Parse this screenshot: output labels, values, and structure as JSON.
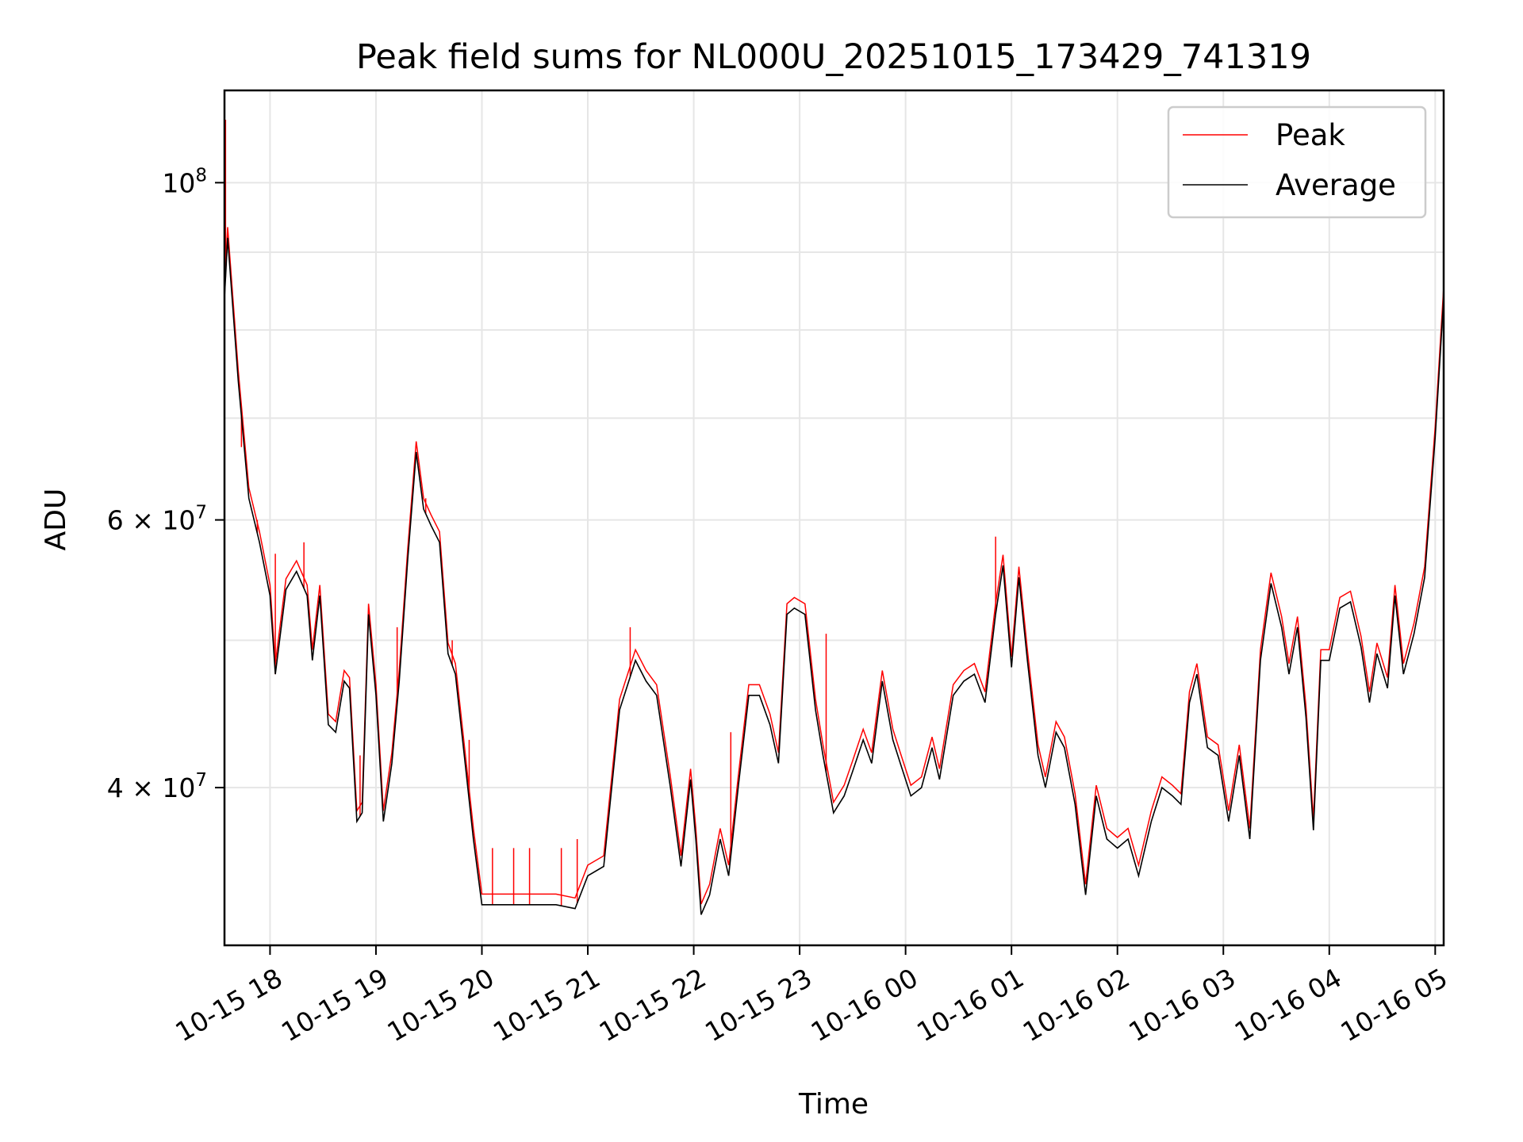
{
  "chart_data": {
    "type": "line",
    "title": "Peak field sums for NL000U_20251015_173429_741319",
    "xlabel": "Time",
    "ylabel": "ADU",
    "yscale": "log",
    "ylim": [
      31500000,
      115000000
    ],
    "xlim_hours_from_1015_1700": [
      0.57,
      12.08
    ],
    "grid": true,
    "legend_position": "top-right",
    "x_ticks": [
      {
        "h": 1,
        "label": "10-15 18"
      },
      {
        "h": 2,
        "label": "10-15 19"
      },
      {
        "h": 3,
        "label": "10-15 20"
      },
      {
        "h": 4,
        "label": "10-15 21"
      },
      {
        "h": 5,
        "label": "10-15 22"
      },
      {
        "h": 6,
        "label": "10-15 23"
      },
      {
        "h": 7,
        "label": "10-16 00"
      },
      {
        "h": 8,
        "label": "10-16 01"
      },
      {
        "h": 9,
        "label": "10-16 02"
      },
      {
        "h": 10,
        "label": "10-16 03"
      },
      {
        "h": 11,
        "label": "10-16 04"
      },
      {
        "h": 12,
        "label": "10-16 05"
      }
    ],
    "y_ticks": [
      {
        "v": 40000000,
        "base": "4 × 10",
        "exp": "7"
      },
      {
        "v": 60000000,
        "base": "6 × 10",
        "exp": "7"
      },
      {
        "v": 100000000,
        "base": "10",
        "exp": "8"
      }
    ],
    "y_minor_grid": [
      50000000,
      70000000,
      80000000,
      90000000
    ],
    "series": [
      {
        "name": "Peak",
        "color": "#ff0000",
        "spikes": [
          [
            0.58,
            110000000
          ],
          [
            0.73,
            67000000
          ],
          [
            0.88,
            60000000
          ],
          [
            1.05,
            57000000
          ],
          [
            1.32,
            58000000
          ],
          [
            1.85,
            42000000
          ],
          [
            2.2,
            51000000
          ],
          [
            2.47,
            62000000
          ],
          [
            2.72,
            50000000
          ],
          [
            2.88,
            43000000
          ],
          [
            3.1,
            36500000
          ],
          [
            3.3,
            36500000
          ],
          [
            3.45,
            36500000
          ],
          [
            3.75,
            36500000
          ],
          [
            3.9,
            37000000
          ],
          [
            4.4,
            51000000
          ],
          [
            5.35,
            43500000
          ],
          [
            6.25,
            50500000
          ],
          [
            7.85,
            58500000
          ]
        ]
      },
      {
        "name": "Average",
        "color": "#000000",
        "points": [
          [
            0.57,
            84000000
          ],
          [
            0.6,
            92000000
          ],
          [
            0.7,
            74000000
          ],
          [
            0.8,
            62000000
          ],
          [
            0.9,
            58000000
          ],
          [
            1.0,
            53500000
          ],
          [
            1.05,
            47500000
          ],
          [
            1.15,
            54000000
          ],
          [
            1.25,
            55500000
          ],
          [
            1.35,
            53500000
          ],
          [
            1.4,
            48500000
          ],
          [
            1.47,
            53500000
          ],
          [
            1.55,
            44000000
          ],
          [
            1.62,
            43500000
          ],
          [
            1.7,
            47000000
          ],
          [
            1.75,
            46500000
          ],
          [
            1.82,
            38000000
          ],
          [
            1.87,
            38500000
          ],
          [
            1.93,
            52000000
          ],
          [
            2.0,
            46000000
          ],
          [
            2.07,
            38000000
          ],
          [
            2.15,
            41500000
          ],
          [
            2.22,
            47000000
          ],
          [
            2.3,
            56500000
          ],
          [
            2.38,
            66500000
          ],
          [
            2.45,
            61000000
          ],
          [
            2.52,
            59500000
          ],
          [
            2.6,
            58000000
          ],
          [
            2.68,
            49000000
          ],
          [
            2.75,
            47500000
          ],
          [
            2.85,
            41000000
          ],
          [
            2.92,
            37000000
          ],
          [
            3.0,
            33500000
          ],
          [
            3.2,
            33500000
          ],
          [
            3.5,
            33500000
          ],
          [
            3.7,
            33500000
          ],
          [
            3.88,
            33300000
          ],
          [
            4.0,
            35000000
          ],
          [
            4.15,
            35500000
          ],
          [
            4.3,
            45000000
          ],
          [
            4.45,
            48500000
          ],
          [
            4.55,
            47000000
          ],
          [
            4.65,
            46000000
          ],
          [
            4.78,
            40000000
          ],
          [
            4.88,
            35500000
          ],
          [
            4.97,
            40500000
          ],
          [
            5.02,
            37000000
          ],
          [
            5.07,
            33000000
          ],
          [
            5.15,
            34000000
          ],
          [
            5.25,
            37000000
          ],
          [
            5.33,
            35000000
          ],
          [
            5.42,
            40000000
          ],
          [
            5.52,
            46000000
          ],
          [
            5.62,
            46000000
          ],
          [
            5.72,
            44000000
          ],
          [
            5.8,
            41500000
          ],
          [
            5.88,
            52000000
          ],
          [
            5.95,
            52500000
          ],
          [
            6.05,
            52000000
          ],
          [
            6.15,
            45000000
          ],
          [
            6.22,
            42000000
          ],
          [
            6.32,
            38500000
          ],
          [
            6.42,
            39500000
          ],
          [
            6.5,
            41000000
          ],
          [
            6.6,
            43000000
          ],
          [
            6.68,
            41500000
          ],
          [
            6.78,
            47000000
          ],
          [
            6.88,
            43000000
          ],
          [
            6.95,
            41500000
          ],
          [
            7.05,
            39500000
          ],
          [
            7.15,
            40000000
          ],
          [
            7.25,
            42500000
          ],
          [
            7.32,
            40500000
          ],
          [
            7.45,
            46000000
          ],
          [
            7.55,
            47000000
          ],
          [
            7.65,
            47500000
          ],
          [
            7.75,
            45500000
          ],
          [
            7.85,
            52000000
          ],
          [
            7.92,
            56000000
          ],
          [
            8.0,
            48000000
          ],
          [
            8.07,
            55000000
          ],
          [
            8.15,
            48500000
          ],
          [
            8.25,
            42000000
          ],
          [
            8.32,
            40000000
          ],
          [
            8.42,
            43500000
          ],
          [
            8.5,
            42500000
          ],
          [
            8.6,
            39000000
          ],
          [
            8.7,
            34000000
          ],
          [
            8.8,
            39500000
          ],
          [
            8.9,
            37000000
          ],
          [
            9.0,
            36500000
          ],
          [
            9.1,
            37000000
          ],
          [
            9.2,
            35000000
          ],
          [
            9.32,
            38000000
          ],
          [
            9.42,
            40000000
          ],
          [
            9.52,
            39500000
          ],
          [
            9.6,
            39000000
          ],
          [
            9.68,
            45500000
          ],
          [
            9.75,
            47500000
          ],
          [
            9.85,
            42500000
          ],
          [
            9.95,
            42000000
          ],
          [
            10.05,
            38000000
          ],
          [
            10.15,
            42000000
          ],
          [
            10.25,
            37000000
          ],
          [
            10.35,
            48500000
          ],
          [
            10.45,
            54500000
          ],
          [
            10.55,
            51000000
          ],
          [
            10.62,
            47500000
          ],
          [
            10.7,
            51000000
          ],
          [
            10.78,
            44500000
          ],
          [
            10.85,
            37500000
          ],
          [
            10.92,
            48500000
          ],
          [
            11.0,
            48500000
          ],
          [
            11.1,
            52500000
          ],
          [
            11.2,
            53000000
          ],
          [
            11.3,
            49500000
          ],
          [
            11.38,
            45500000
          ],
          [
            11.45,
            49000000
          ],
          [
            11.55,
            46500000
          ],
          [
            11.62,
            53500000
          ],
          [
            11.7,
            47500000
          ],
          [
            11.8,
            50500000
          ],
          [
            11.9,
            55000000
          ],
          [
            12.0,
            68000000
          ],
          [
            12.08,
            84000000
          ]
        ]
      }
    ]
  }
}
